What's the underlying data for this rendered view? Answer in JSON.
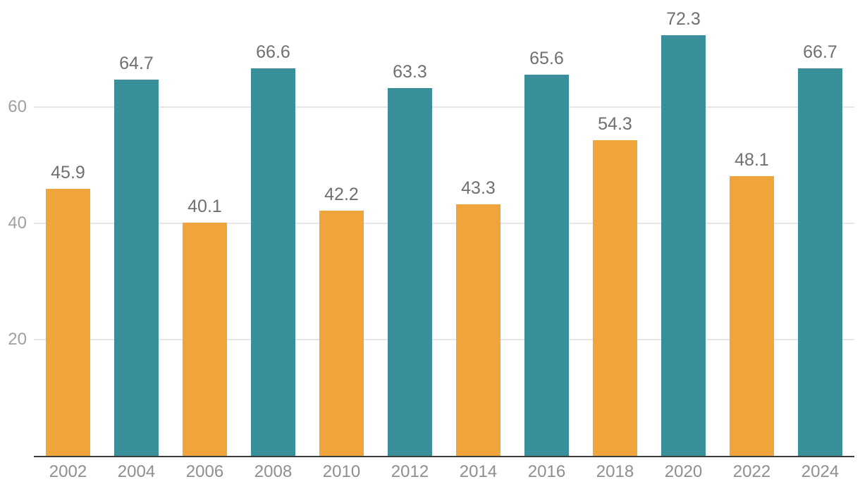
{
  "chart_data": {
    "type": "bar",
    "categories": [
      "2002",
      "2004",
      "2006",
      "2008",
      "2010",
      "2012",
      "2014",
      "2016",
      "2018",
      "2020",
      "2022",
      "2024"
    ],
    "values": [
      45.9,
      64.7,
      40.1,
      66.6,
      42.2,
      63.3,
      43.3,
      65.6,
      54.3,
      72.3,
      48.1,
      66.7
    ],
    "value_labels": [
      "45.9",
      "64.7",
      "40.1",
      "66.6",
      "42.2",
      "63.3",
      "43.3",
      "65.6",
      "54.3",
      "72.3",
      "48.1",
      "66.7"
    ],
    "yticks": [
      "20",
      "40",
      "60"
    ],
    "ytick_values": [
      20,
      40,
      60
    ],
    "ylim": [
      0,
      78.4
    ],
    "grid": true,
    "legend": false,
    "palette": [
      "#F0A43C",
      "#39909B"
    ],
    "colors": {
      "bar_orange": "#F0A43C",
      "bar_teal": "#39909B",
      "gridline": "#E6E6E6",
      "axis_line": "#3C3C3C",
      "value_label": "#707070",
      "x_tick_label": "#8F8F8F",
      "y_tick_label": "#A0A0A0",
      "background": "#FFFFFF"
    }
  }
}
